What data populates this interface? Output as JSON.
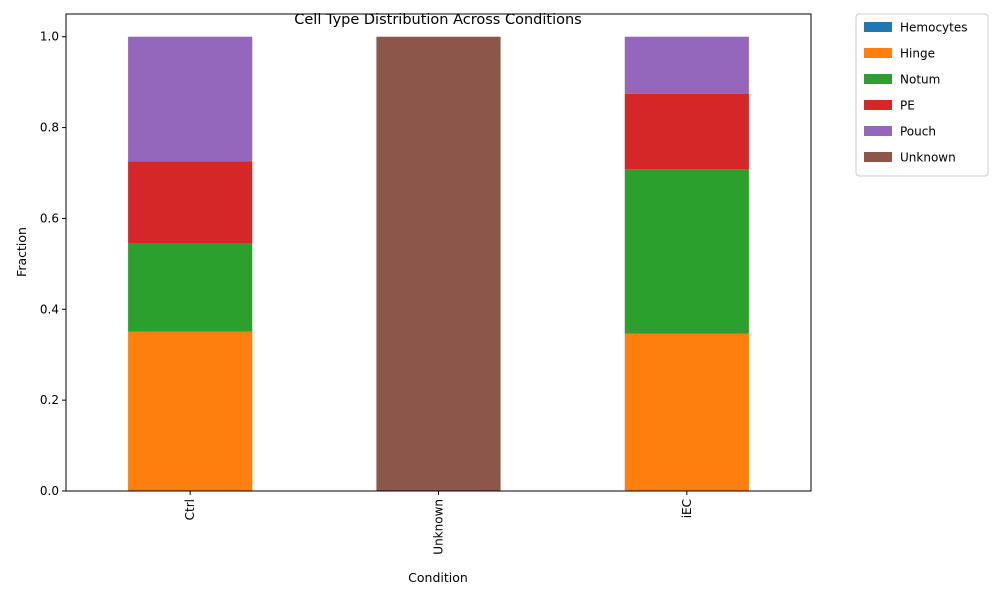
{
  "chart_data": {
    "type": "bar",
    "stacked": true,
    "title": "Cell Type Distribution Across Conditions",
    "xlabel": "Condition",
    "ylabel": "Fraction",
    "categories": [
      "Ctrl",
      "Unknown",
      "iEC"
    ],
    "ylim": [
      0,
      1.05
    ],
    "yticks": [
      "0.0",
      "0.2",
      "0.4",
      "0.6",
      "0.8",
      "1.0"
    ],
    "grid": false,
    "legend_position": "outside-top-right",
    "series": [
      {
        "name": "Hemocytes",
        "color": "#1f77b4",
        "values": [
          0,
          0,
          0
        ]
      },
      {
        "name": "Hinge",
        "color": "#ff7f0e",
        "values": [
          0.351,
          0,
          0.346
        ]
      },
      {
        "name": "Notum",
        "color": "#2ca02c",
        "values": [
          0.194,
          0,
          0.362
        ]
      },
      {
        "name": "PE",
        "color": "#d62728",
        "values": [
          0.181,
          0,
          0.166
        ]
      },
      {
        "name": "Pouch",
        "color": "#9467bd",
        "values": [
          0.274,
          0,
          0.126
        ]
      },
      {
        "name": "Unknown",
        "color": "#8c564b",
        "values": [
          0,
          1.0,
          0
        ]
      }
    ]
  }
}
